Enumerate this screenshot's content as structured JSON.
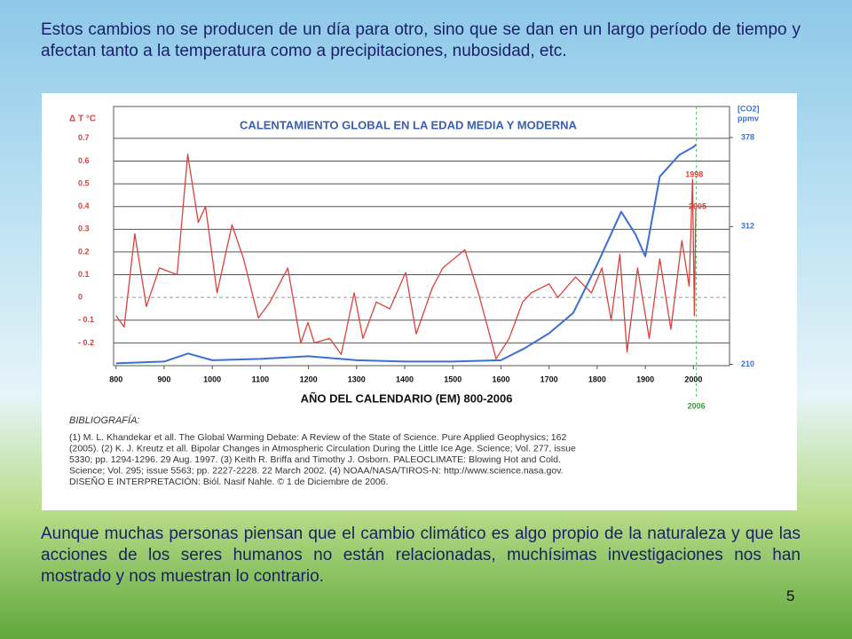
{
  "slide": {
    "intro": "Estos cambios no se producen de un día para otro, sino que se dan en un largo período de tiempo y afectan tanto a la temperatura como a precipitaciones, nubosidad, etc.",
    "conclusion": "Aunque muchas personas piensan que el cambio climático es algo propio de la naturaleza y que las acciones de los seres humanos no están relacionadas, muchísimas investigaciones nos han mostrado y nos muestran lo contrario.",
    "page_number": "5"
  },
  "chart_data": {
    "type": "line",
    "title": "CALENTAMIENTO GLOBAL EN LA EDAD MEDIA Y MODERNA",
    "x_label": "AÑO DEL CALENDARIO (EM) 800-2006",
    "y_label": "Δ T °C",
    "y2_label": [
      "[CO2]",
      "ppmv"
    ],
    "xlim": [
      795,
      2075
    ],
    "xticks": [
      800,
      900,
      1000,
      1100,
      1200,
      1300,
      1400,
      1500,
      1600,
      1700,
      1800,
      1900,
      2000
    ],
    "ylim": [
      -0.3,
      0.84
    ],
    "yticks": [
      0.7,
      0.6,
      0.5,
      0.4,
      0.3,
      0.2,
      0.1,
      0,
      {
        "value": -0.1,
        "label": "- 0.1"
      },
      {
        "value": -0.2,
        "label": "- 0.2"
      }
    ],
    "y2lim": [
      209,
      401
    ],
    "y2ticks": [
      378,
      312,
      210
    ],
    "grid": true,
    "highlight_years": [
      1998,
      2005,
      2006
    ],
    "series": [
      {
        "name": "Δ T °C",
        "color": "#d9423c",
        "axis": "y",
        "x": [
          800,
          817,
          839,
          863,
          890,
          927,
          949,
          971,
          986,
          1010,
          1041,
          1065,
          1096,
          1120,
          1157,
          1184,
          1199,
          1212,
          1244,
          1268,
          1295,
          1313,
          1341,
          1369,
          1402,
          1424,
          1457,
          1479,
          1525,
          1553,
          1590,
          1617,
          1645,
          1663,
          1700,
          1718,
          1755,
          1788,
          1810,
          1829,
          1847,
          1862,
          1884,
          1908,
          1930,
          1953,
          1976,
          1991,
          1998,
          2002,
          2005
        ],
        "values": [
          -0.08,
          -0.13,
          0.28,
          -0.04,
          0.13,
          0.1,
          0.63,
          0.33,
          0.4,
          0.02,
          0.32,
          0.17,
          -0.09,
          -0.02,
          0.13,
          -0.2,
          -0.11,
          -0.2,
          -0.18,
          -0.25,
          0.02,
          -0.18,
          -0.02,
          -0.05,
          0.11,
          -0.16,
          0.04,
          0.13,
          0.21,
          0.02,
          -0.27,
          -0.18,
          -0.02,
          0.02,
          0.06,
          0,
          0.09,
          0.02,
          0.13,
          -0.1,
          0.19,
          -0.24,
          0.13,
          -0.18,
          0.17,
          -0.14,
          0.25,
          0.05,
          0.52,
          -0.08,
          0.39
        ]
      },
      {
        "name": "[CO2] ppmv",
        "color": "#3d6fcf",
        "axis": "y2",
        "x": [
          800,
          900,
          950,
          1000,
          1100,
          1200,
          1300,
          1400,
          1500,
          1600,
          1650,
          1700,
          1750,
          1800,
          1850,
          1880,
          1900,
          1930,
          1970,
          2000,
          2006
        ],
        "values": [
          210.7,
          212,
          218,
          213,
          214,
          216,
          213,
          212,
          212,
          213,
          222,
          233,
          248,
          284,
          323,
          306,
          290,
          349,
          365,
          371,
          373
        ]
      }
    ],
    "bibliography": {
      "heading": "BIBLIOGRAFÍA:",
      "lines": [
        "(1) M. L. Khandekar et all. The Global Warming Debate: A Review of the State of Science. Pure Applied Geophysics; 162",
        "(2005). (2) K. J. Kreutz et all. Bipolar Changes in Atmospheric Circulation During the Little Ice Age. Science; Vol. 277, issue",
        "5330; pp. 1294-1296. 29 Aug. 1997. (3) Keith R. Briffa and Timothy J. Osborn. PALEOCLIMATE: Blowing Hot and Cold.",
        "Science; Vol. 295; issue 5563; pp. 2227-2228. 22 March 2002. (4) NOAA/NASA/TIROS-N: http://www.science.nasa.gov.",
        "DISEÑO E INTERPRETACIÓN: Biól. Nasif Nahle. © 1 de Diciembre de 2006."
      ]
    }
  }
}
